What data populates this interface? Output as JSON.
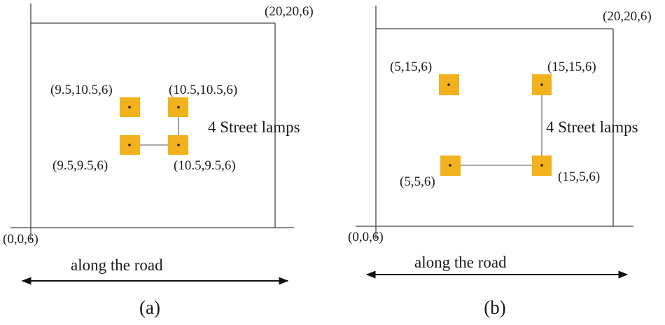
{
  "colors": {
    "lamp": "#f2b21d",
    "frame": "#444444"
  },
  "panels": [
    {
      "caption": "(a)",
      "lamps_label": "4 Street lamps",
      "road_label": "along the road",
      "origin_label": "(0,0,6)",
      "corner_label": "(20,20,6)",
      "lamps": [
        {
          "label": "(9.5,10.5,6)",
          "x": 9.5,
          "y": 10.5,
          "z": 6
        },
        {
          "label": "(10.5,10.5,6)",
          "x": 10.5,
          "y": 10.5,
          "z": 6
        },
        {
          "label": "(9.5,9.5,6)",
          "x": 9.5,
          "y": 9.5,
          "z": 6
        },
        {
          "label": "(10.5,9.5,6)",
          "x": 10.5,
          "y": 9.5,
          "z": 6
        }
      ]
    },
    {
      "caption": "(b)",
      "lamps_label": "4 Street lamps",
      "road_label": "along the road",
      "origin_label": "(0,0,6)",
      "corner_label": "(20,20,6)",
      "lamps": [
        {
          "label": "(5,15,6)",
          "x": 5,
          "y": 15,
          "z": 6
        },
        {
          "label": "(15,15,6)",
          "x": 15,
          "y": 15,
          "z": 6
        },
        {
          "label": "(5,5,6)",
          "x": 5,
          "y": 5,
          "z": 6
        },
        {
          "label": "(15,5,6)",
          "x": 15,
          "y": 5,
          "z": 6
        }
      ]
    }
  ]
}
